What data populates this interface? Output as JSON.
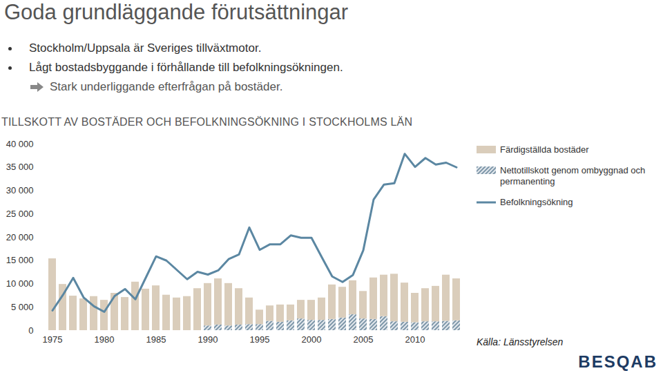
{
  "page": {
    "title": "Goda grundläggande förutsättningar",
    "bullets": [
      "Stockholm/Uppsala är Sveriges tillväxtmotor.",
      "Lågt bostadsbyggande i förhållande till befolkningsökningen."
    ],
    "arrow_text": "Stark underliggande efterfrågan på bostäder.",
    "source": "Källa: Länsstyrelsen",
    "logo": "BESQAB"
  },
  "chart_data": {
    "type": "bar",
    "title": "TILLSKOTT AV BOSTÄDER OCH BEFOLKNINGSÖKNING I STOCKHOLMS LÄN",
    "categories": [
      "1975",
      null,
      null,
      null,
      null,
      "1980",
      null,
      null,
      null,
      null,
      "1985",
      null,
      null,
      null,
      null,
      "1990",
      null,
      null,
      null,
      null,
      "1995",
      null,
      null,
      null,
      null,
      "2000",
      null,
      null,
      null,
      null,
      "2005",
      null,
      null,
      null,
      null,
      "2010",
      null,
      null,
      null,
      null
    ],
    "stacked": true,
    "grid": false,
    "legend": "right",
    "ylim": [
      0,
      40000
    ],
    "yticks": [
      0,
      {
        "value": 5000,
        "label": "5 000"
      },
      {
        "value": 10000,
        "label": "10 000"
      },
      {
        "value": 15000,
        "label": "15 000"
      },
      {
        "value": 20000,
        "label": "20 000"
      },
      {
        "value": 25000,
        "label": "25 000"
      },
      {
        "value": 30000,
        "label": "30 000"
      },
      {
        "value": 35000,
        "label": "35 000"
      },
      {
        "value": 40000,
        "label": "40 000"
      }
    ],
    "series": [
      {
        "name": "Färdigställda bostäder",
        "type": "bar",
        "color": "#dacdbb",
        "values": [
          15400,
          9900,
          7400,
          6800,
          7300,
          6500,
          8000,
          7100,
          10400,
          8900,
          9600,
          7600,
          7000,
          7300,
          9000,
          9100,
          9900,
          9100,
          7800,
          5700,
          3100,
          3300,
          3700,
          3400,
          4000,
          4300,
          4800,
          7400,
          6600,
          7300,
          5900,
          8900,
          8900,
          10200,
          8400,
          6300,
          7100,
          7600,
          9900,
          9000
        ]
      },
      {
        "name": "Nettotillskott genom ombyggnad och permanenting",
        "type": "bar",
        "color": "#7d96a8",
        "values": [
          null,
          null,
          null,
          null,
          null,
          null,
          null,
          null,
          null,
          null,
          null,
          null,
          null,
          null,
          null,
          1000,
          1200,
          1000,
          1200,
          1300,
          1300,
          2000,
          1800,
          2100,
          2500,
          2200,
          2200,
          2400,
          2700,
          3400,
          2500,
          2400,
          3000,
          1900,
          1800,
          1700,
          1900,
          1900,
          2000,
          2100
        ]
      },
      {
        "name": "Befolkningsökning",
        "type": "line",
        "color": "#5b87a2",
        "values": [
          4300,
          7600,
          11300,
          7100,
          5200,
          4000,
          7400,
          8900,
          6700,
          11300,
          15900,
          15000,
          13000,
          11000,
          12600,
          12000,
          12900,
          15300,
          16300,
          22100,
          17300,
          18500,
          18500,
          20400,
          19900,
          19900,
          15700,
          11600,
          10400,
          11900,
          17200,
          28100,
          31300,
          31600,
          37900,
          35100,
          37000,
          35600,
          36000,
          35000
        ]
      }
    ]
  }
}
